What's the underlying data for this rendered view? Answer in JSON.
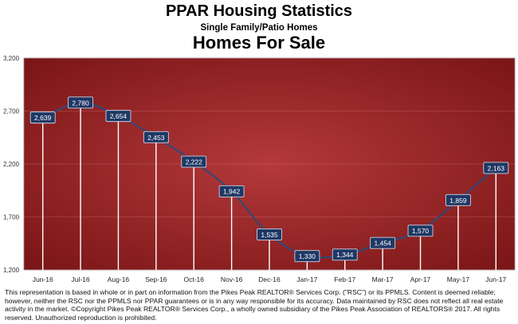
{
  "header": {
    "title": "PPAR Housing Statistics",
    "subtitle": "Single Family/Patio Homes",
    "chart_title": "Homes For Sale"
  },
  "footer": {
    "line1": "This representation is based in whole or in part on information from the Pikes Peak REALTOR® Services Corp. (\"RSC\") or its PPMLS. Content is deemed reliable;",
    "line2": "however, neither the RSC nor the PPMLS nor PPAR guarantees or is in any way responsible for its accuracy. Data maintained by RSC does not reflect all real estate",
    "line3": "activity in the market. ©Copyright Pikes Peak REALTOR® Services Corp., a wholly owned subsidiary of the Pikes Peak Association of REALTORS® 2017. All rights",
    "line4": "reserved. Unauthorized reproduction is prohibited."
  },
  "colors": {
    "plot_center": "#b4393a",
    "plot_edge": "#7a1516",
    "label_box": "#1f3864",
    "line": "#2d4a7a"
  },
  "chart_data": {
    "type": "line",
    "title": "Homes For Sale",
    "categories": [
      "Jun-16",
      "Jul-16",
      "Aug-16",
      "Sep-16",
      "Oct-16",
      "Nov-16",
      "Dec-16",
      "Jan-17",
      "Feb-17",
      "Mar-17",
      "Apr-17",
      "May-17",
      "Jun-17"
    ],
    "values": [
      2639,
      2780,
      2654,
      2453,
      2222,
      1942,
      1535,
      1330,
      1344,
      1454,
      1570,
      1859,
      2163
    ],
    "labels": [
      "2,639",
      "2,780",
      "2,654",
      "2,453",
      "2,222",
      "1,942",
      "1,535",
      "1,330",
      "1,344",
      "1,454",
      "1,570",
      "1,859",
      "2,163"
    ],
    "yticks": [
      "1,200",
      "1,700",
      "2,200",
      "2,700",
      "3,200"
    ],
    "ylim": [
      1200,
      3200
    ],
    "grid": true
  }
}
